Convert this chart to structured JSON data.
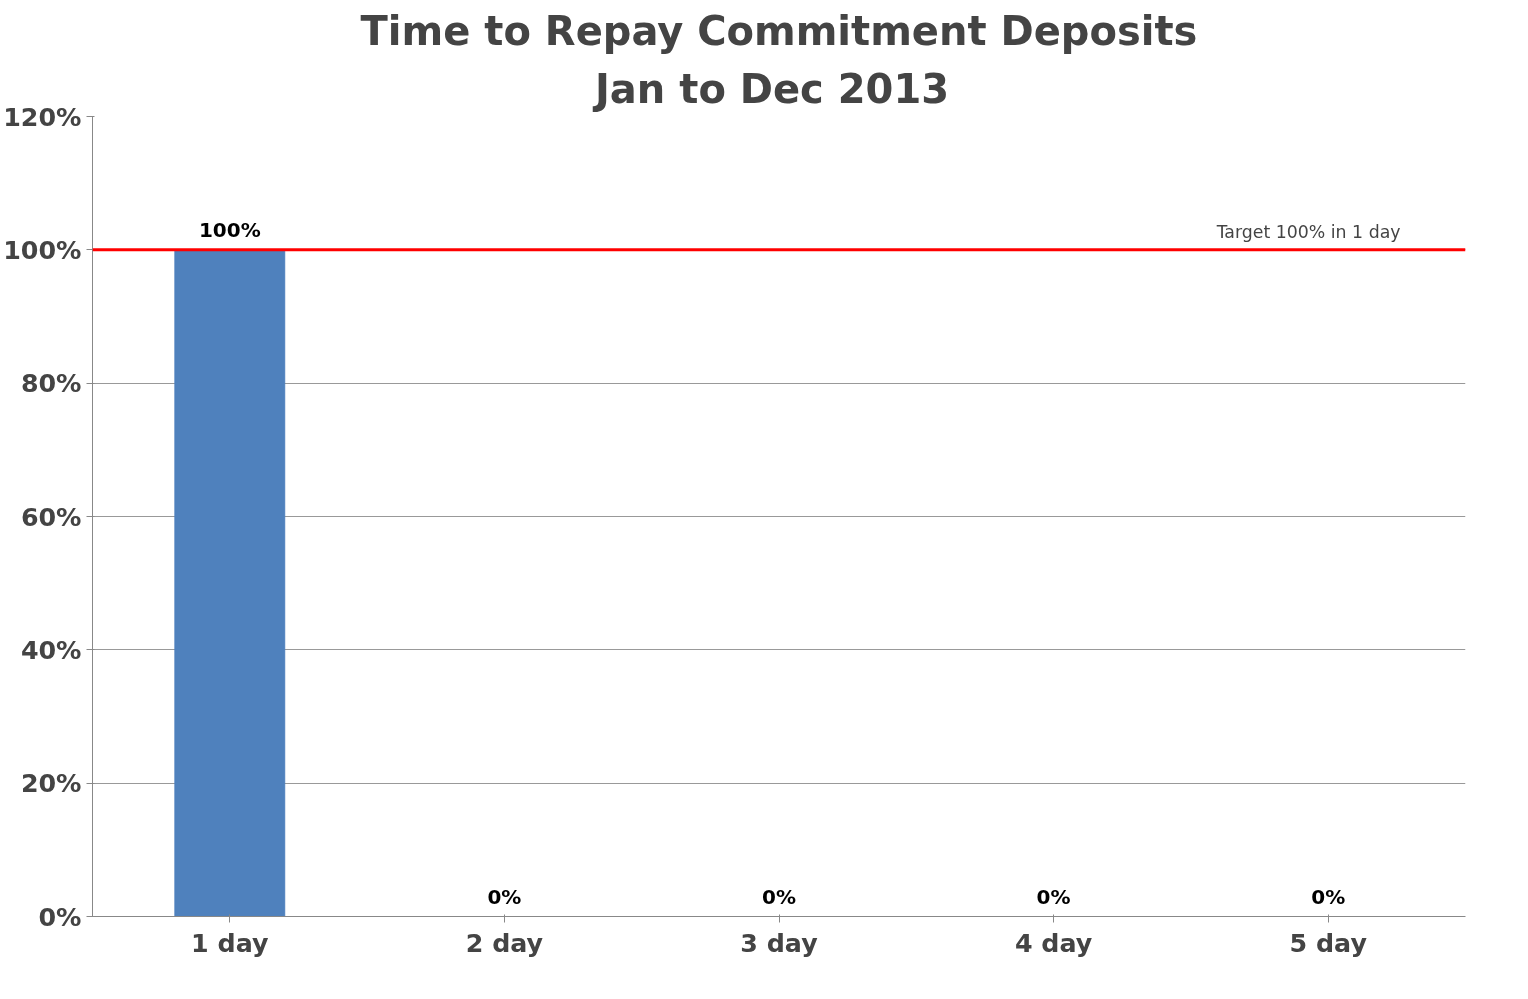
{
  "chart_data": {
    "type": "bar",
    "title": "Time to Repay Commitment Deposits",
    "subtitle": "Jan to  Dec 2013",
    "categories": [
      "1 day",
      "2 day",
      "3 day",
      "4 day",
      "5 day"
    ],
    "values": [
      100,
      0,
      0,
      0,
      0
    ],
    "color": "#4f81bd",
    "value_labels": [
      "100%",
      "0%",
      "0%",
      "0%",
      "0%"
    ],
    "ylim": [
      0,
      120
    ],
    "yticks": [
      {
        "value": 0,
        "label": "0%"
      },
      {
        "value": 20,
        "label": "20%"
      },
      {
        "value": 40,
        "label": "40%"
      },
      {
        "value": 60,
        "label": "60%"
      },
      {
        "value": 80,
        "label": "80%"
      },
      {
        "value": 100,
        "label": "100%"
      },
      {
        "value": 120,
        "label": "120%"
      }
    ],
    "ref_lines": [
      {
        "axis": "y",
        "value": 100,
        "label": "Target 100% in 1 day",
        "color": "#ff0000"
      }
    ],
    "grid": "y"
  }
}
